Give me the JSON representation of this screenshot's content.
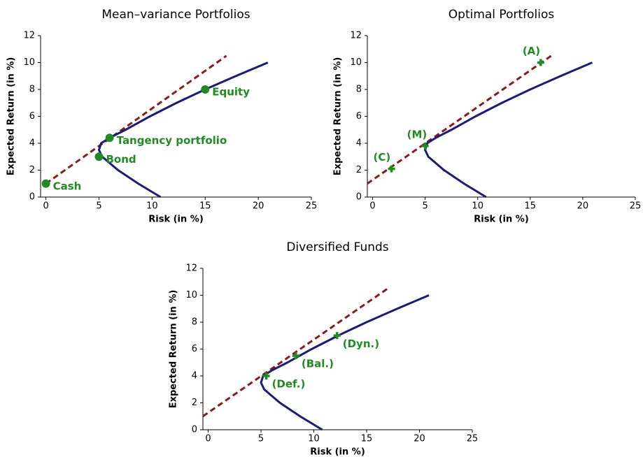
{
  "chart_data": [
    {
      "type": "line",
      "title": "Mean–variance Portfolios",
      "x_label": "Risk (in %)",
      "y_label": "Expected Return (in %)",
      "xlim": [
        -0.5,
        25
      ],
      "ylim": [
        0,
        12
      ],
      "xticks": [
        0,
        5,
        10,
        15,
        20,
        25
      ],
      "yticks": [
        0,
        2,
        4,
        6,
        8,
        10,
        12
      ],
      "lines": [
        {
          "color": "#8b1a1a",
          "dashed": true,
          "x": [
            0,
            17
          ],
          "y": [
            1,
            10.5
          ]
        },
        {
          "color": "#1a1a80",
          "dashed": false,
          "x": [
            10.8,
            8.7,
            6.8,
            5.3,
            5.0,
            5.2,
            6.0,
            7.5,
            9.8,
            12.3,
            15.0,
            17.9,
            20.9
          ],
          "y": [
            0,
            1,
            2,
            3,
            3.5,
            4,
            4.4,
            5,
            6,
            7,
            8,
            9,
            10
          ]
        }
      ],
      "points": {
        "color": "#1e8c1e",
        "marker": "circle",
        "x": [
          0,
          5,
          6,
          15
        ],
        "y": [
          1,
          3,
          4.4,
          8
        ],
        "labels": [
          "Cash",
          "Bond",
          "Tangency portfolio",
          "Equity"
        ]
      }
    },
    {
      "type": "line",
      "title": "Optimal Portfolios",
      "x_label": "Risk (in %)",
      "y_label": "Expected Return (in %)",
      "xlim": [
        -0.5,
        25
      ],
      "ylim": [
        0,
        12
      ],
      "xticks": [
        0,
        5,
        10,
        15,
        20,
        25
      ],
      "yticks": [
        0,
        2,
        4,
        6,
        8,
        10,
        12
      ],
      "lines": [
        {
          "color": "#8b1a1a",
          "dashed": true,
          "x": [
            -0.5,
            17
          ],
          "y": [
            1,
            10.5
          ]
        },
        {
          "color": "#1a1a80",
          "dashed": false,
          "x": [
            10.8,
            8.7,
            6.8,
            5.3,
            5.0,
            5.2,
            6.0,
            7.5,
            9.8,
            12.3,
            15.0,
            17.9,
            20.9
          ],
          "y": [
            0,
            1,
            2,
            3,
            3.5,
            4,
            4.4,
            5,
            6,
            7,
            8,
            9,
            10
          ]
        }
      ],
      "points": {
        "color": "#1e8c1e",
        "marker": "plus",
        "x": [
          1.8,
          5,
          16
        ],
        "y": [
          2.1,
          3.8,
          10
        ],
        "labels": [
          "(C)",
          "(M)",
          "(A)"
        ]
      }
    },
    {
      "type": "line",
      "title": "Diversified Funds",
      "x_label": "Risk (in %)",
      "y_label": "Expected Return (in %)",
      "xlim": [
        -0.5,
        25
      ],
      "ylim": [
        0,
        12
      ],
      "xticks": [
        0,
        5,
        10,
        15,
        20,
        25
      ],
      "yticks": [
        0,
        2,
        4,
        6,
        8,
        10,
        12
      ],
      "lines": [
        {
          "color": "#8b1a1a",
          "dashed": true,
          "x": [
            -0.5,
            17
          ],
          "y": [
            1,
            10.5
          ]
        },
        {
          "color": "#1a1a80",
          "dashed": false,
          "x": [
            10.8,
            8.7,
            6.8,
            5.3,
            5.0,
            5.2,
            6.0,
            7.5,
            9.8,
            12.3,
            15.0,
            17.9,
            20.9
          ],
          "y": [
            0,
            1,
            2,
            3,
            3.5,
            4,
            4.4,
            5,
            6,
            7,
            8,
            9,
            10
          ]
        }
      ],
      "points": {
        "color": "#1e8c1e",
        "marker": "plus",
        "x": [
          5.5,
          8.3,
          12.2
        ],
        "y": [
          4,
          5.5,
          7
        ],
        "labels": [
          "(Def.)",
          "(Bal.)",
          "(Dyn.)"
        ]
      }
    }
  ]
}
